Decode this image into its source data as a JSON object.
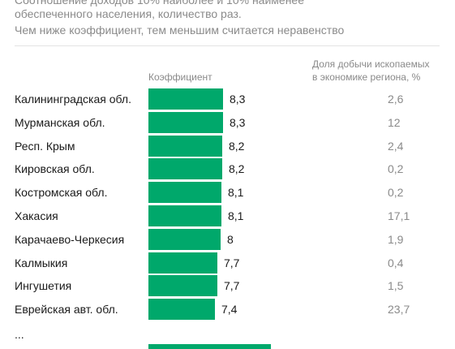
{
  "subtitle": {
    "line1": "Соотношение доходов 10% наиболее и 10% наименее",
    "line2": "обеспеченного населения, количество раз.",
    "line3": "Чем ниже коэффициент, тем меньшим считается неравенство"
  },
  "columns": {
    "coefficient": "Коэффициент",
    "share_line1": "Доля добычи ископаемых",
    "share_line2": "в экономике региона, %"
  },
  "ellipsis": "...",
  "colors": {
    "bar": "#00a86b"
  },
  "chart_data": {
    "type": "bar",
    "orientation": "horizontal",
    "categories": [
      "Калининградская обл.",
      "Мурманская обл.",
      "Респ. Крым",
      "Кировская обл.",
      "Костромская обл.",
      "Хакасия",
      "Карачаево-Черкесия",
      "Калмыкия",
      "Ингушетия",
      "Еврейская авт. обл."
    ],
    "values": [
      8.3,
      8.3,
      8.2,
      8.2,
      8.1,
      8.1,
      8,
      7.7,
      7.7,
      7.4
    ],
    "value_labels": [
      "8,3",
      "8,3",
      "8,2",
      "8,2",
      "8,1",
      "8,1",
      "8",
      "7,7",
      "7,7",
      "7,4"
    ],
    "mining_share": [
      "2,6",
      "12",
      "2,4",
      "0,2",
      "0,2",
      "17,1",
      "1,9",
      "0,4",
      "1,5",
      "23,7"
    ],
    "xlim": [
      0,
      8.3
    ],
    "grid": false
  }
}
